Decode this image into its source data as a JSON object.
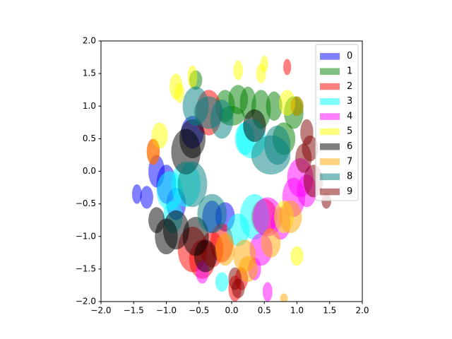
{
  "chart_data": {
    "type": "ellipse",
    "xlim": [
      -2,
      2
    ],
    "ylim": [
      -2,
      2
    ],
    "xticks": [
      {
        "value": -2,
        "label": "−2.0"
      },
      {
        "value": -1.5,
        "label": "−1.5"
      },
      {
        "value": -1,
        "label": "−1.0"
      },
      {
        "value": -0.5,
        "label": "−0.5"
      },
      {
        "value": 0,
        "label": "0.0"
      },
      0.5,
      {
        "value": 1,
        "label": "1.0"
      },
      1.5,
      {
        "value": 2,
        "label": "2.0"
      }
    ],
    "yticks": [
      {
        "value": -2,
        "label": "−2.0"
      },
      {
        "value": -1.5,
        "label": "−1.5"
      },
      {
        "value": -1,
        "label": "−1.0"
      },
      {
        "value": -0.5,
        "label": "−0.5"
      },
      {
        "value": 0,
        "label": "0.0"
      },
      0.5,
      {
        "value": 1,
        "label": "1.0"
      },
      1.5,
      {
        "value": 2,
        "label": "2.0"
      }
    ],
    "alpha": 0.5,
    "legend": "upper right",
    "series": [
      {
        "name": "0",
        "color": "#0000ff",
        "x": [
          -1.3,
          -1.45,
          -1.15,
          -1.0,
          -0.85,
          -0.6,
          -0.3,
          -0.1
        ],
        "y": [
          -0.4,
          -0.35,
          0.0,
          -0.2,
          -0.5,
          0.6,
          -0.7,
          -0.7
        ],
        "w": [
          0.2,
          0.15,
          0.25,
          0.3,
          0.3,
          0.35,
          0.3,
          0.3
        ],
        "h": [
          0.35,
          0.3,
          0.5,
          0.6,
          0.5,
          0.5,
          0.5,
          0.45
        ]
      },
      {
        "name": "1",
        "color": "#008000",
        "x": [
          -0.55,
          -0.1,
          0.1,
          0.25,
          0.45,
          0.65,
          0.8,
          0.95,
          1.0,
          0.0
        ],
        "y": [
          1.4,
          1.0,
          1.1,
          1.05,
          0.95,
          1.0,
          0.5,
          0.9,
          1.0,
          0.85
        ],
        "w": [
          0.2,
          0.3,
          0.3,
          0.25,
          0.3,
          0.25,
          0.35,
          0.3,
          0.2,
          0.4
        ],
        "h": [
          0.3,
          0.5,
          0.45,
          0.5,
          0.6,
          0.45,
          0.5,
          0.5,
          0.3,
          0.3
        ]
      },
      {
        "name": "2",
        "color": "#ff0000",
        "x": [
          -0.6,
          -0.45,
          -0.3,
          -0.15,
          0.05,
          0.5,
          0.85,
          -0.35,
          -1.2,
          0.15
        ],
        "y": [
          -1.2,
          -1.35,
          -1.2,
          -1.1,
          -1.8,
          -0.7,
          1.6,
          0.9,
          0.3,
          -1.65
        ],
        "w": [
          0.45,
          0.4,
          0.35,
          0.35,
          0.2,
          0.4,
          0.12,
          0.4,
          0.2,
          0.2
        ],
        "h": [
          0.7,
          0.6,
          0.55,
          0.6,
          0.4,
          0.55,
          0.25,
          0.7,
          0.4,
          0.35
        ]
      },
      {
        "name": "3",
        "color": "#00ffff",
        "x": [
          -0.95,
          -0.7,
          -0.9,
          0.1,
          0.35,
          0.3,
          -0.15,
          0.2
        ],
        "y": [
          -0.3,
          -0.2,
          -0.7,
          -0.9,
          -0.7,
          0.5,
          -1.7,
          0.5
        ],
        "w": [
          0.4,
          0.45,
          0.3,
          0.35,
          0.45,
          0.45,
          0.2,
          0.3
        ],
        "h": [
          0.6,
          0.7,
          0.5,
          0.5,
          0.7,
          0.6,
          0.3,
          0.5
        ]
      },
      {
        "name": "4",
        "color": "#ff00ff",
        "x": [
          0.55,
          0.45,
          0.75,
          0.95,
          1.05,
          1.15,
          0.35,
          -0.45,
          0.55
        ],
        "y": [
          -0.7,
          -1.2,
          -0.8,
          -0.4,
          -0.1,
          -0.3,
          -1.5,
          -1.55,
          -1.85
        ],
        "w": [
          0.45,
          0.35,
          0.3,
          0.35,
          0.4,
          0.3,
          0.2,
          0.2,
          0.15
        ],
        "h": [
          0.6,
          0.5,
          0.5,
          0.6,
          0.6,
          0.5,
          0.35,
          0.35,
          0.3
        ]
      },
      {
        "name": "5",
        "color": "#ffff00",
        "x": [
          -0.85,
          -0.8,
          -0.6,
          0.1,
          0.45,
          0.5,
          0.85,
          -1.1,
          0.8,
          1.0
        ],
        "y": [
          1.3,
          1.2,
          1.45,
          1.55,
          1.5,
          1.65,
          1.05,
          0.55,
          -0.7,
          -1.3
        ],
        "w": [
          0.2,
          0.15,
          0.15,
          0.15,
          0.15,
          0.12,
          0.25,
          0.25,
          0.3,
          0.2
        ],
        "h": [
          0.4,
          0.3,
          0.35,
          0.3,
          0.3,
          0.25,
          0.4,
          0.4,
          0.5,
          0.3
        ]
      },
      {
        "name": "6",
        "color": "#000000",
        "x": [
          -1.0,
          -0.85,
          -0.7,
          -0.6,
          -0.55,
          0.35,
          -0.4,
          -1.15
        ],
        "y": [
          -1.0,
          -0.9,
          0.3,
          0.5,
          -1.0,
          0.7,
          -1.3,
          -0.75
        ],
        "w": [
          0.35,
          0.4,
          0.45,
          0.4,
          0.4,
          0.35,
          0.35,
          0.25
        ],
        "h": [
          0.55,
          0.6,
          0.7,
          0.6,
          0.6,
          0.5,
          0.5,
          0.4
        ]
      },
      {
        "name": "7",
        "color": "#ffa500",
        "x": [
          0.2,
          0.25,
          -0.1,
          0.9,
          0.6,
          1.0,
          -1.2,
          0.8
        ],
        "y": [
          -1.3,
          -1.5,
          -1.2,
          -0.7,
          -1.1,
          1.0,
          0.3,
          -1.95
        ],
        "w": [
          0.35,
          0.3,
          0.3,
          0.35,
          0.3,
          0.2,
          0.2,
          0.12
        ],
        "h": [
          0.5,
          0.4,
          0.5,
          0.5,
          0.45,
          0.3,
          0.4,
          0.15
        ]
      },
      {
        "name": "8",
        "color": "#008080",
        "x": [
          -0.55,
          -0.35,
          -0.15,
          0.6,
          -0.6,
          -0.3,
          0.7
        ],
        "y": [
          1.0,
          0.9,
          0.8,
          0.25,
          -0.2,
          -0.65,
          0.4
        ],
        "w": [
          0.4,
          0.45,
          0.35,
          0.6,
          0.45,
          0.45,
          0.4
        ],
        "h": [
          0.6,
          0.5,
          0.6,
          0.6,
          0.7,
          0.6,
          0.6
        ]
      },
      {
        "name": "9",
        "color": "#800000",
        "x": [
          1.15,
          1.2,
          1.25,
          1.1,
          0.05,
          0.1,
          1.45
        ],
        "y": [
          0.6,
          0.35,
          -0.15,
          0.2,
          -1.65,
          -1.8,
          -0.45
        ],
        "w": [
          0.2,
          0.25,
          0.3,
          0.25,
          0.2,
          0.2,
          0.15
        ],
        "h": [
          0.4,
          0.4,
          0.5,
          0.45,
          0.35,
          0.3,
          0.25
        ]
      }
    ]
  }
}
